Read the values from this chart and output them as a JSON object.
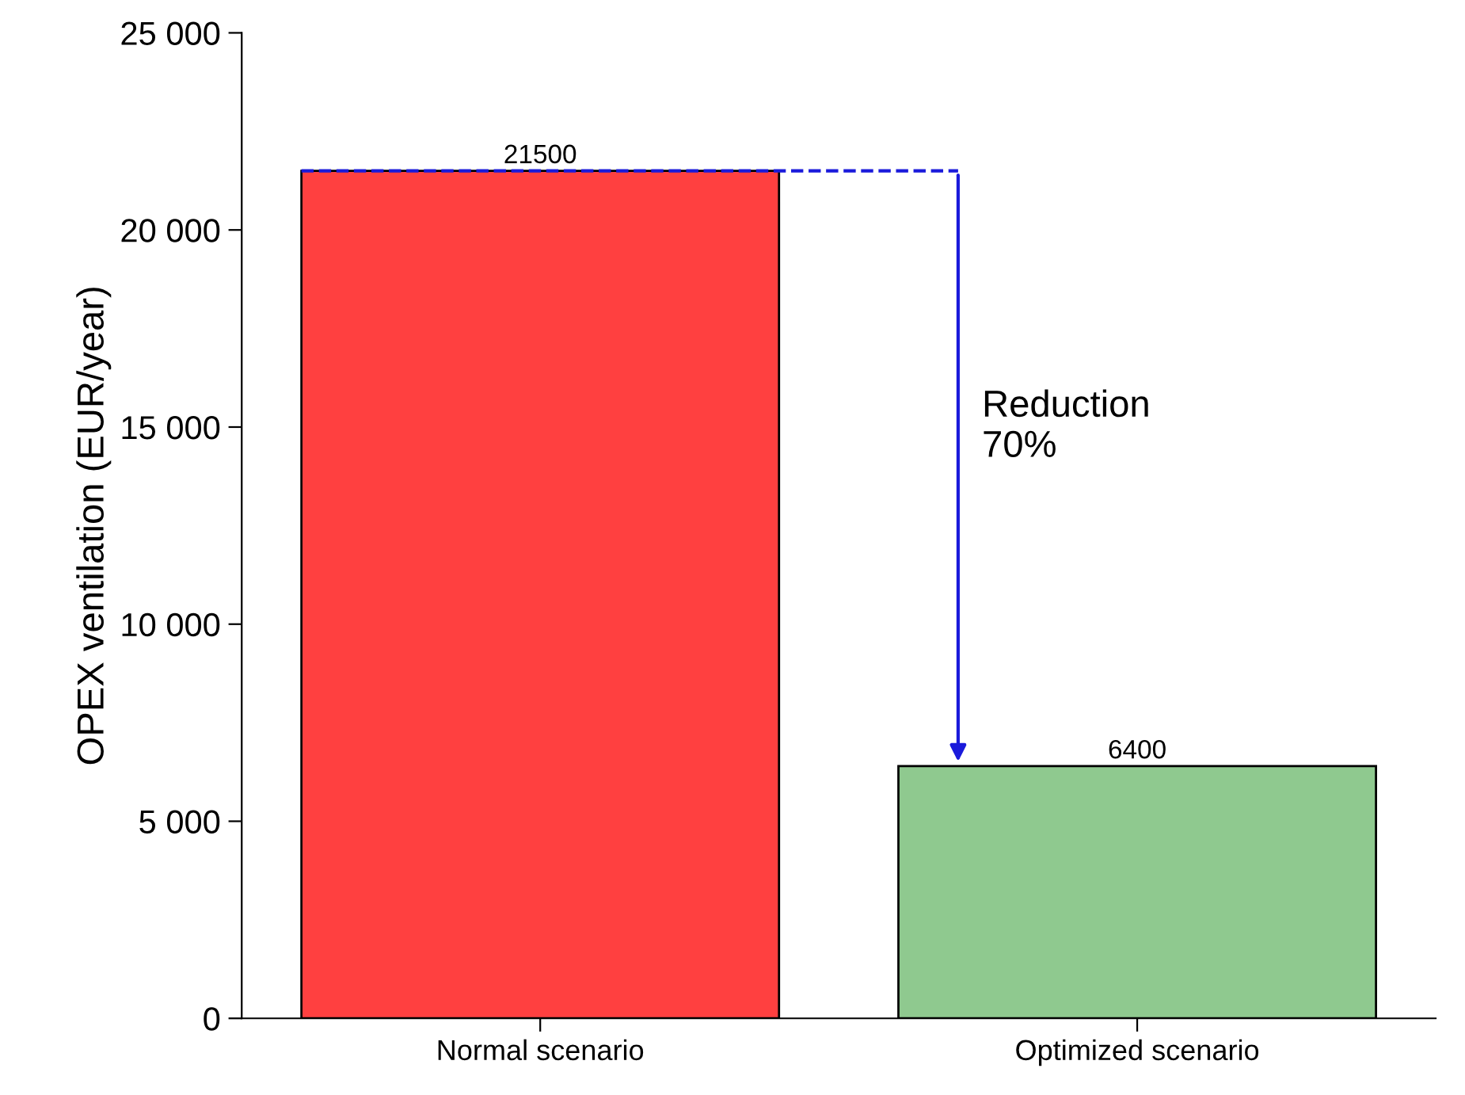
{
  "chart_data": {
    "type": "bar",
    "ylabel": "OPEX ventilation (EUR/year)",
    "categories": [
      "Normal scenario",
      "Optimized scenario"
    ],
    "values": [
      21500,
      6400
    ],
    "colors": [
      "#ff4040",
      "#8fc98f"
    ],
    "ylim": [
      0,
      25000
    ],
    "yticks": [
      0,
      {
        "value": 5000,
        "label": "5 000"
      },
      {
        "value": 10000,
        "label": "10 000"
      },
      {
        "value": 15000,
        "label": "15 000"
      },
      {
        "value": 20000,
        "label": "20 000"
      },
      {
        "value": 25000,
        "label": "25 000"
      }
    ],
    "data_labels": true,
    "grid": false,
    "ref_lines": [
      {
        "axis": "y",
        "value": 21500,
        "color": "#1a1adb",
        "line_style": "dashed"
      }
    ],
    "annotations": [
      "Reduction\n70%"
    ]
  }
}
